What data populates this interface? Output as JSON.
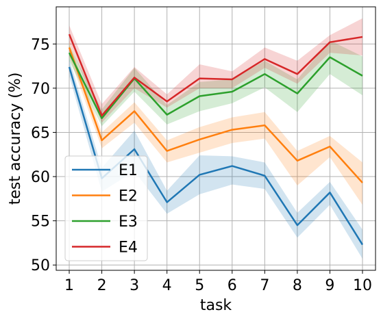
{
  "chart_data": {
    "type": "line",
    "xlabel": "task",
    "ylabel": "test accuracy (%)",
    "x": [
      1,
      2,
      3,
      4,
      5,
      6,
      7,
      8,
      9,
      10
    ],
    "xlim": [
      0.6,
      10.4
    ],
    "ylim": [
      49.4,
      79.2
    ],
    "yticks": [
      50,
      55,
      60,
      65,
      70,
      75
    ],
    "grid": true,
    "legend_position": "lower-left",
    "series": [
      {
        "name": "E1",
        "color": "#1f77b4",
        "values": [
          72.4,
          59.8,
          63.1,
          57.1,
          60.2,
          61.2,
          60.1,
          54.5,
          58.2,
          52.3
        ],
        "lower": [
          71.4,
          58.3,
          60.6,
          55.8,
          58.0,
          59.1,
          58.6,
          53.1,
          56.8,
          50.7
        ],
        "upper": [
          73.3,
          61.0,
          65.2,
          58.4,
          62.4,
          62.3,
          61.6,
          55.9,
          59.4,
          54.0
        ]
      },
      {
        "name": "E2",
        "color": "#ff7f0e",
        "values": [
          74.6,
          64.1,
          67.4,
          62.9,
          64.2,
          65.3,
          65.8,
          61.8,
          63.4,
          59.3
        ],
        "lower": [
          73.6,
          63.2,
          66.1,
          61.6,
          62.7,
          63.8,
          64.3,
          59.0,
          62.2,
          56.8
        ],
        "upper": [
          75.3,
          65.0,
          68.4,
          64.1,
          65.6,
          66.7,
          67.3,
          62.9,
          64.6,
          61.6
        ]
      },
      {
        "name": "E3",
        "color": "#2ca02c",
        "values": [
          74.0,
          66.6,
          71.1,
          67.0,
          69.1,
          69.6,
          71.6,
          69.4,
          73.5,
          71.4
        ],
        "lower": [
          73.1,
          65.7,
          69.6,
          65.9,
          67.4,
          68.3,
          70.1,
          67.3,
          71.6,
          69.2
        ],
        "upper": [
          74.9,
          67.6,
          72.3,
          68.1,
          70.7,
          71.0,
          73.1,
          71.0,
          75.4,
          73.6
        ]
      },
      {
        "name": "E4",
        "color": "#d62728",
        "values": [
          76.1,
          66.9,
          71.2,
          68.5,
          71.1,
          71.0,
          73.3,
          71.6,
          75.2,
          75.8
        ],
        "lower": [
          75.2,
          66.1,
          70.0,
          67.8,
          70.0,
          70.0,
          72.3,
          70.5,
          74.0,
          73.7
        ],
        "upper": [
          77.1,
          68.2,
          72.4,
          69.3,
          72.7,
          71.9,
          74.6,
          73.1,
          76.0,
          77.9
        ]
      }
    ]
  }
}
